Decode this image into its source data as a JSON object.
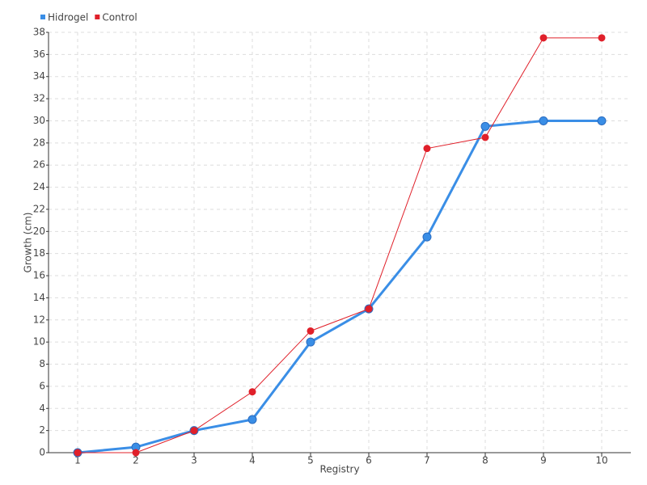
{
  "chart_data": {
    "type": "line",
    "x_label": "Registry",
    "y_label": "Growth (cm)",
    "categories": [
      "1",
      "2",
      "3",
      "4",
      "5",
      "6",
      "7",
      "8",
      "9",
      "10"
    ],
    "series": [
      {
        "name": "Hidrogel",
        "color": "#3a8ee6",
        "values": [
          0,
          0.5,
          2,
          3,
          10,
          13,
          19.5,
          29.5,
          30,
          30
        ]
      },
      {
        "name": "Control",
        "color": "#e0202a",
        "values": [
          0,
          0,
          2,
          5.5,
          11,
          13,
          27.5,
          28.5,
          37.5,
          37.5
        ]
      }
    ],
    "ylim": [
      0,
      38
    ],
    "yticks": [
      0,
      2,
      4,
      6,
      8,
      10,
      12,
      14,
      16,
      18,
      20,
      22,
      24,
      26,
      28,
      30,
      32,
      34,
      36,
      38
    ],
    "grid": true,
    "legend": "top-left"
  }
}
